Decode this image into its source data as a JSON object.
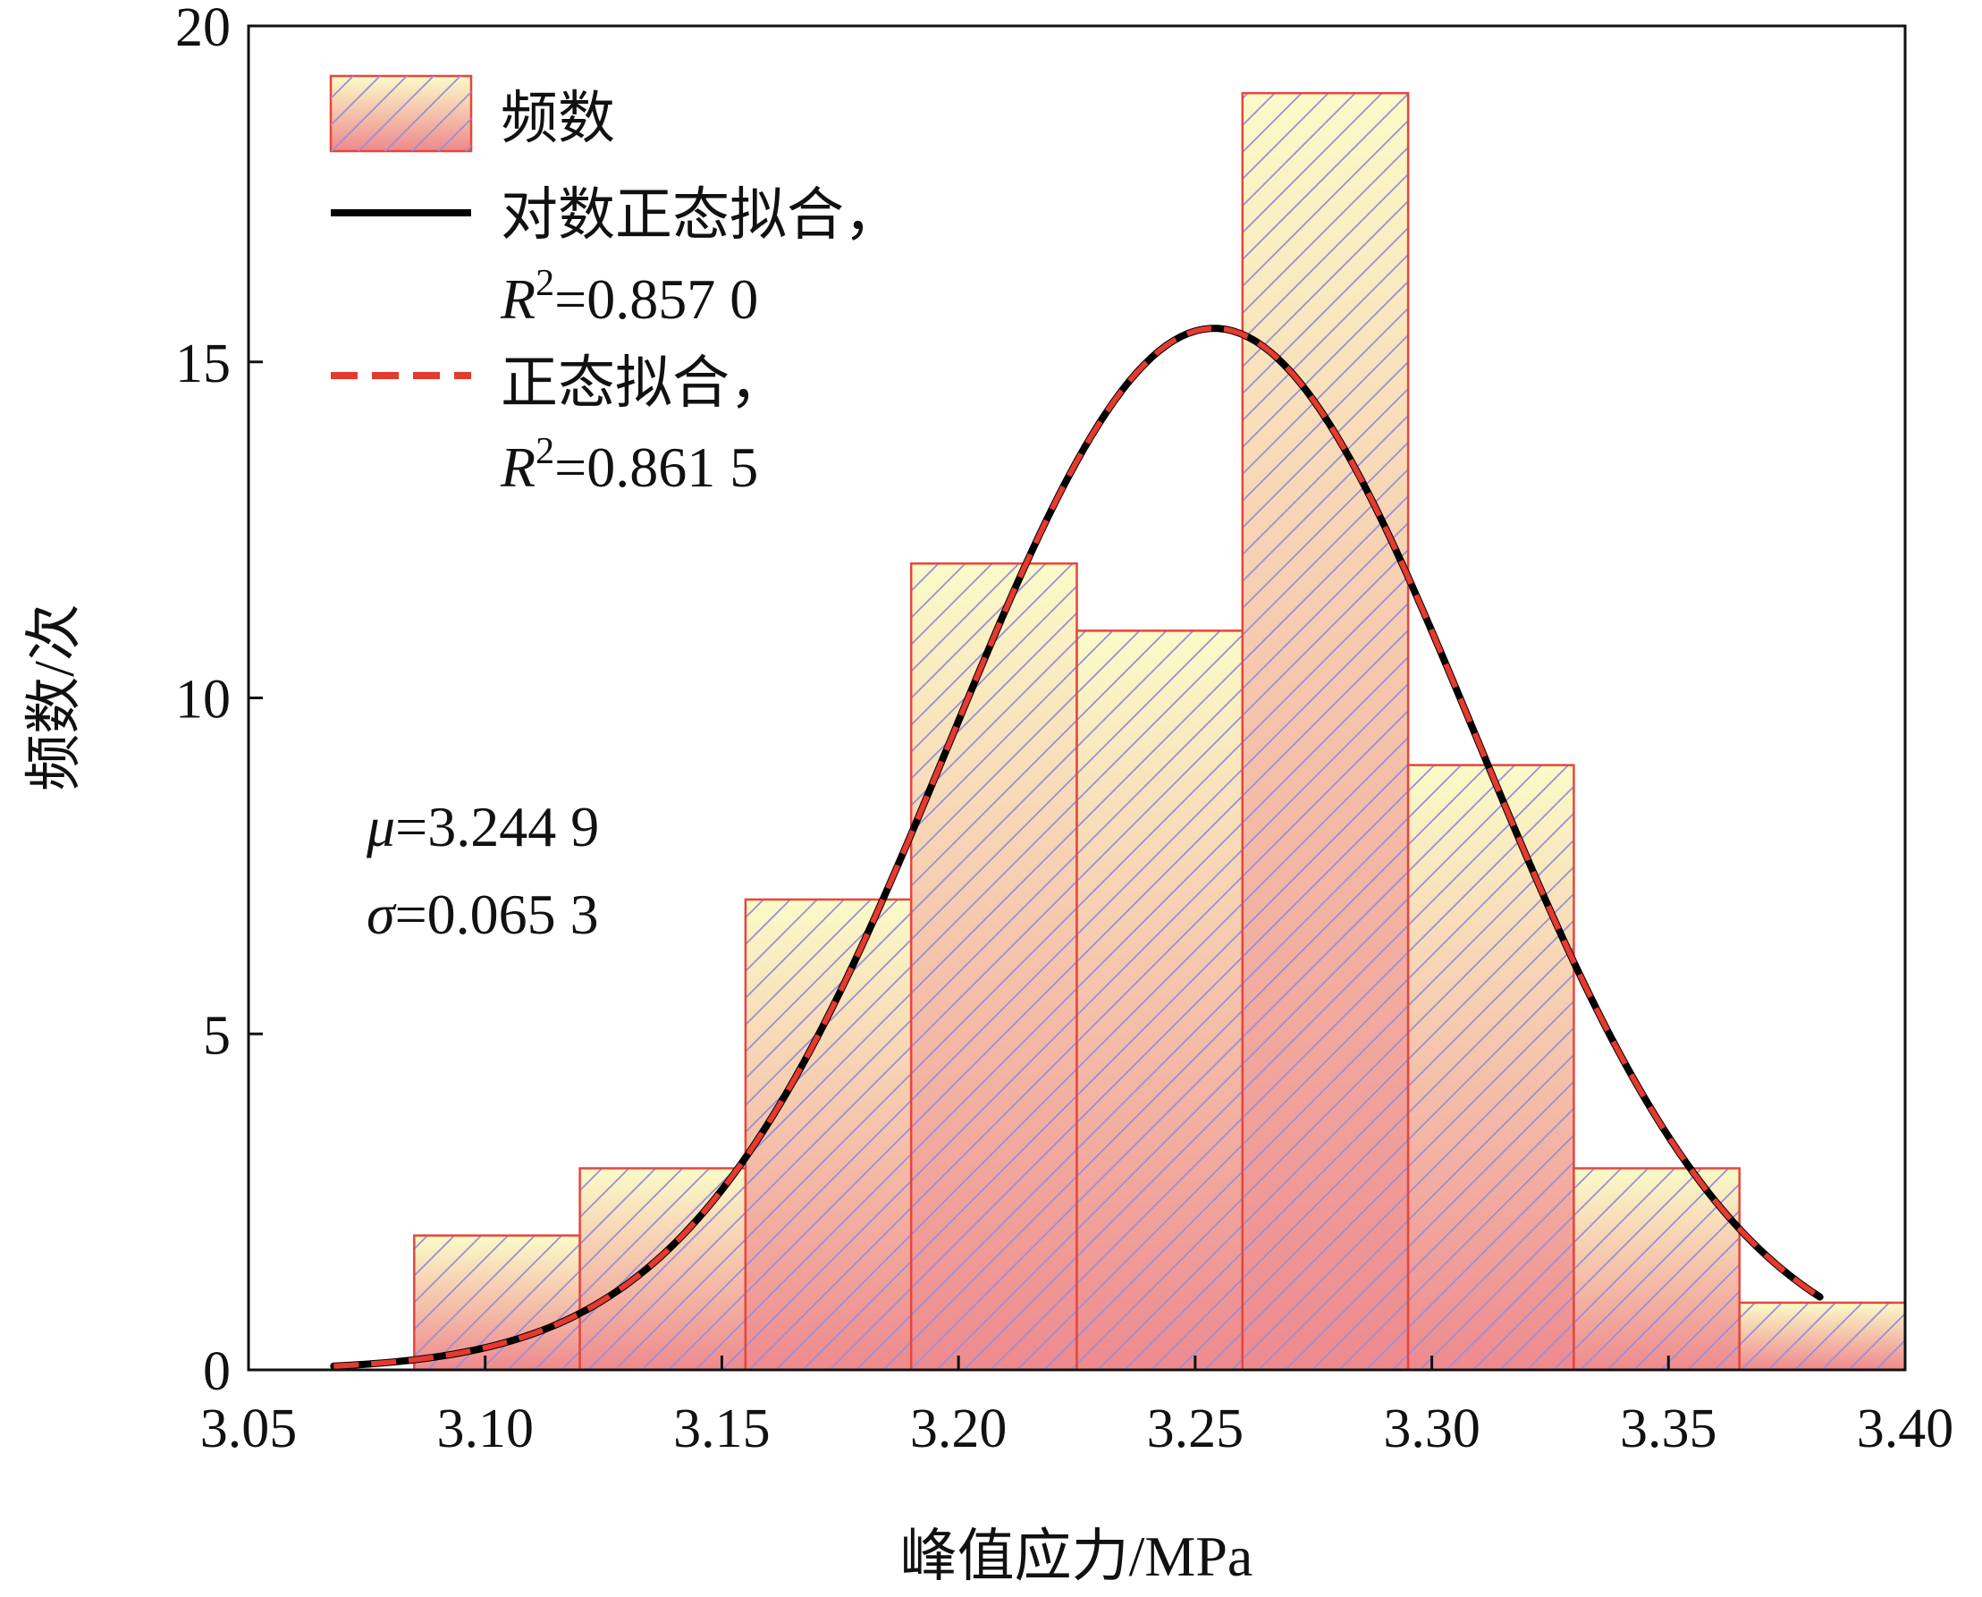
{
  "chart_data": {
    "type": "bar",
    "title": "",
    "xlabel": "峰值应力/MPa",
    "ylabel": "频数/次",
    "xlim": [
      3.05,
      3.4
    ],
    "ylim": [
      0,
      20
    ],
    "x_ticks": [
      3.05,
      3.1,
      3.15,
      3.2,
      3.25,
      3.3,
      3.35,
      3.4
    ],
    "x_tick_labels": [
      "3.05",
      "3.10",
      "3.15",
      "3.20",
      "3.25",
      "3.30",
      "3.35",
      "3.40"
    ],
    "y_ticks": [
      0,
      5,
      10,
      15,
      20
    ],
    "y_tick_labels": [
      "0",
      "5",
      "10",
      "15",
      "20"
    ],
    "bins": [
      {
        "start": 3.085,
        "end": 3.12,
        "count": 2
      },
      {
        "start": 3.12,
        "end": 3.155,
        "count": 3
      },
      {
        "start": 3.155,
        "end": 3.19,
        "count": 7
      },
      {
        "start": 3.19,
        "end": 3.225,
        "count": 12
      },
      {
        "start": 3.225,
        "end": 3.26,
        "count": 11
      },
      {
        "start": 3.26,
        "end": 3.295,
        "count": 19
      },
      {
        "start": 3.295,
        "end": 3.33,
        "count": 9
      },
      {
        "start": 3.33,
        "end": 3.365,
        "count": 3
      },
      {
        "start": 3.365,
        "end": 3.4,
        "count": 1
      }
    ],
    "series": [
      {
        "name": "频数",
        "kind": "histogram",
        "color": "#e8453c"
      },
      {
        "name": "对数正态拟合",
        "kind": "lognormal-fit",
        "color": "#000000",
        "style": "solid",
        "peak_x": 3.254,
        "peak_y": 15.5,
        "sigma": 0.0555,
        "x_range": [
          3.068,
          3.382
        ]
      },
      {
        "name": "正态拟合",
        "kind": "normal-fit",
        "color": "#e53a30",
        "style": "dashed",
        "peak_x": 3.254,
        "peak_y": 15.5,
        "sigma": 0.0555,
        "x_range": [
          3.068,
          3.382
        ]
      }
    ],
    "legend": {
      "position": "top-left",
      "items": [
        {
          "label": "频数"
        },
        {
          "label": "对数正态拟合，",
          "r2_prefix": "R",
          "r2_sup": "2",
          "r2_value": "=0.857 0"
        },
        {
          "label": "正态拟合，",
          "r2_prefix": "R",
          "r2_sup": "2",
          "r2_value": "=0.861 5"
        }
      ]
    },
    "annotations": {
      "mu_symbol": "μ",
      "mu_value": "=3.244 9",
      "sigma_symbol": "σ",
      "sigma_value": "=0.065 3"
    },
    "grid": false,
    "colors": {
      "bar_edge": "#e8453c",
      "bar_top": "#fbfbc8",
      "bar_bottom": "#ee8a8e",
      "hatch": "#9a8fd8",
      "lognormal_line": "#000000",
      "normal_line": "#e53a30"
    }
  }
}
